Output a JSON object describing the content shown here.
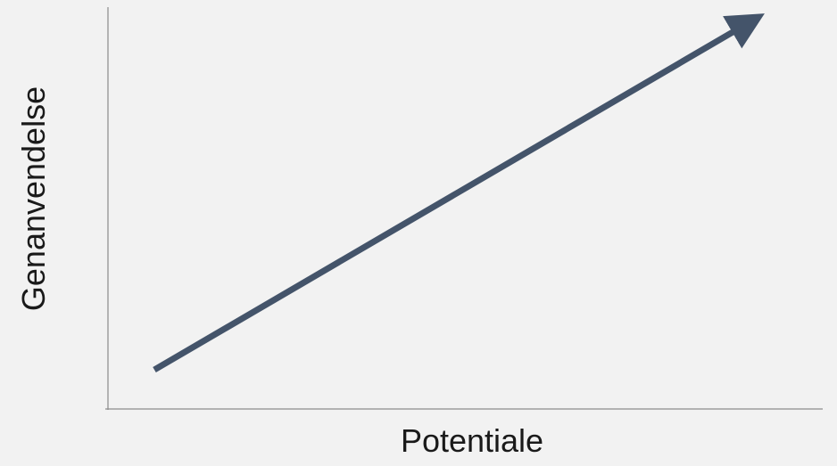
{
  "diagram": {
    "xlabel": "Potentiale",
    "ylabel": "Genanvendelse",
    "colors": {
      "background": "#f2f2f2",
      "axis": "#7f7f7f",
      "arrow": "#44546a",
      "text": "#1a1a1a"
    }
  }
}
